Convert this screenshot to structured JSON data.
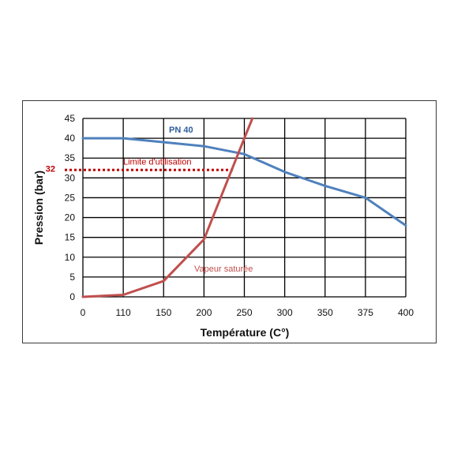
{
  "chart_data": {
    "type": "line",
    "xlabel": "Température (C°)",
    "ylabel": "Pression (bar)",
    "x_ticks": [
      "0",
      "110",
      "150",
      "200",
      "250",
      "300",
      "350",
      "375",
      "400"
    ],
    "y_ticks": [
      "0",
      "5",
      "10",
      "15",
      "20",
      "25",
      "30",
      "35",
      "40",
      "45"
    ],
    "ylim": [
      0,
      45
    ],
    "grid": true,
    "series": [
      {
        "name": "PN 40",
        "color": "#4f81bd",
        "x": [
          "0",
          "110",
          "150",
          "200",
          "250",
          "300",
          "350",
          "375",
          "400"
        ],
        "values": [
          40,
          40,
          39,
          38,
          36,
          31.5,
          28,
          25,
          18
        ]
      },
      {
        "name": "Vapeur saturée",
        "color": "#c0504d",
        "x": [
          "0",
          "110",
          "150",
          "200",
          "250",
          "260"
        ],
        "values": [
          0,
          0.5,
          4,
          14.5,
          40,
          45
        ]
      }
    ],
    "reference_line": {
      "label": "Limite d'utilisation",
      "value": 32,
      "value_label": "32",
      "color": "#c00000"
    }
  }
}
